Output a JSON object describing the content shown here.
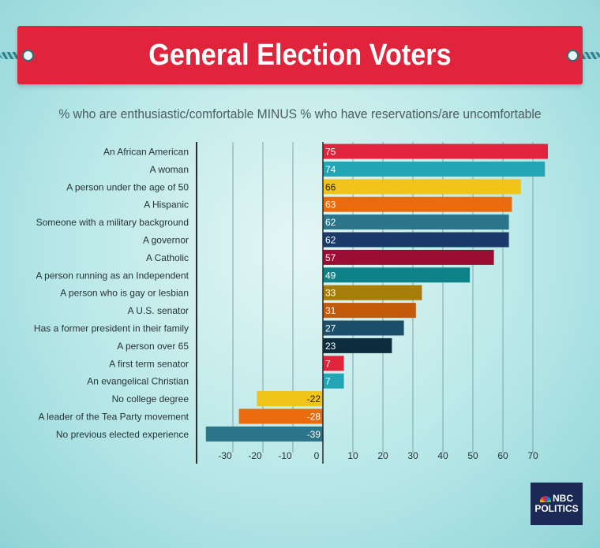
{
  "banner": {
    "title": "General Election Voters"
  },
  "chart_data": {
    "type": "bar",
    "orientation": "horizontal",
    "title": "General Election Voters",
    "subtitle": "% who are enthusiastic/comfortable MINUS % who have reservations/are uncomfortable",
    "categories": [
      "An African American",
      "A woman",
      "A person under the age of 50",
      "A Hispanic",
      "Someone with a military background",
      "A governor",
      "A Catholic",
      "A person running as an Independent",
      "A person who is gay or lesbian",
      "A U.S. senator",
      "Has a former president in their family",
      "A person over 65",
      "A first term senator",
      "An evangelical Christian",
      "No college degree",
      "A leader of the Tea Party movement",
      "No previous elected experience"
    ],
    "values": [
      75,
      74,
      66,
      63,
      62,
      62,
      57,
      49,
      33,
      31,
      27,
      23,
      7,
      7,
      -22,
      -28,
      -39
    ],
    "colors": [
      "#e0243b",
      "#22a6b5",
      "#f0c419",
      "#ea6a0e",
      "#2b7489",
      "#1a3a6a",
      "#9c0d34",
      "#0e8288",
      "#a57d08",
      "#c25a0a",
      "#1c4f6a",
      "#0d2c3d",
      "#e0243b",
      "#22a6b5",
      "#f0c419",
      "#ea6a0e",
      "#2b7489"
    ],
    "label_colors": [
      "#ffffff",
      "#ffffff",
      "#222222",
      "#ffffff",
      "#ffffff",
      "#ffffff",
      "#ffffff",
      "#ffffff",
      "#ffffff",
      "#ffffff",
      "#ffffff",
      "#ffffff",
      "#ffffff",
      "#ffffff",
      "#222222",
      "#ffffff",
      "#ffffff"
    ],
    "x_ticks": [
      -30,
      -20,
      -10,
      0,
      10,
      20,
      30,
      40,
      50,
      60,
      70
    ],
    "xlim": [
      -40,
      75
    ],
    "grid": true
  },
  "logo": {
    "line1": "NBC",
    "line2": "POLITICS"
  }
}
